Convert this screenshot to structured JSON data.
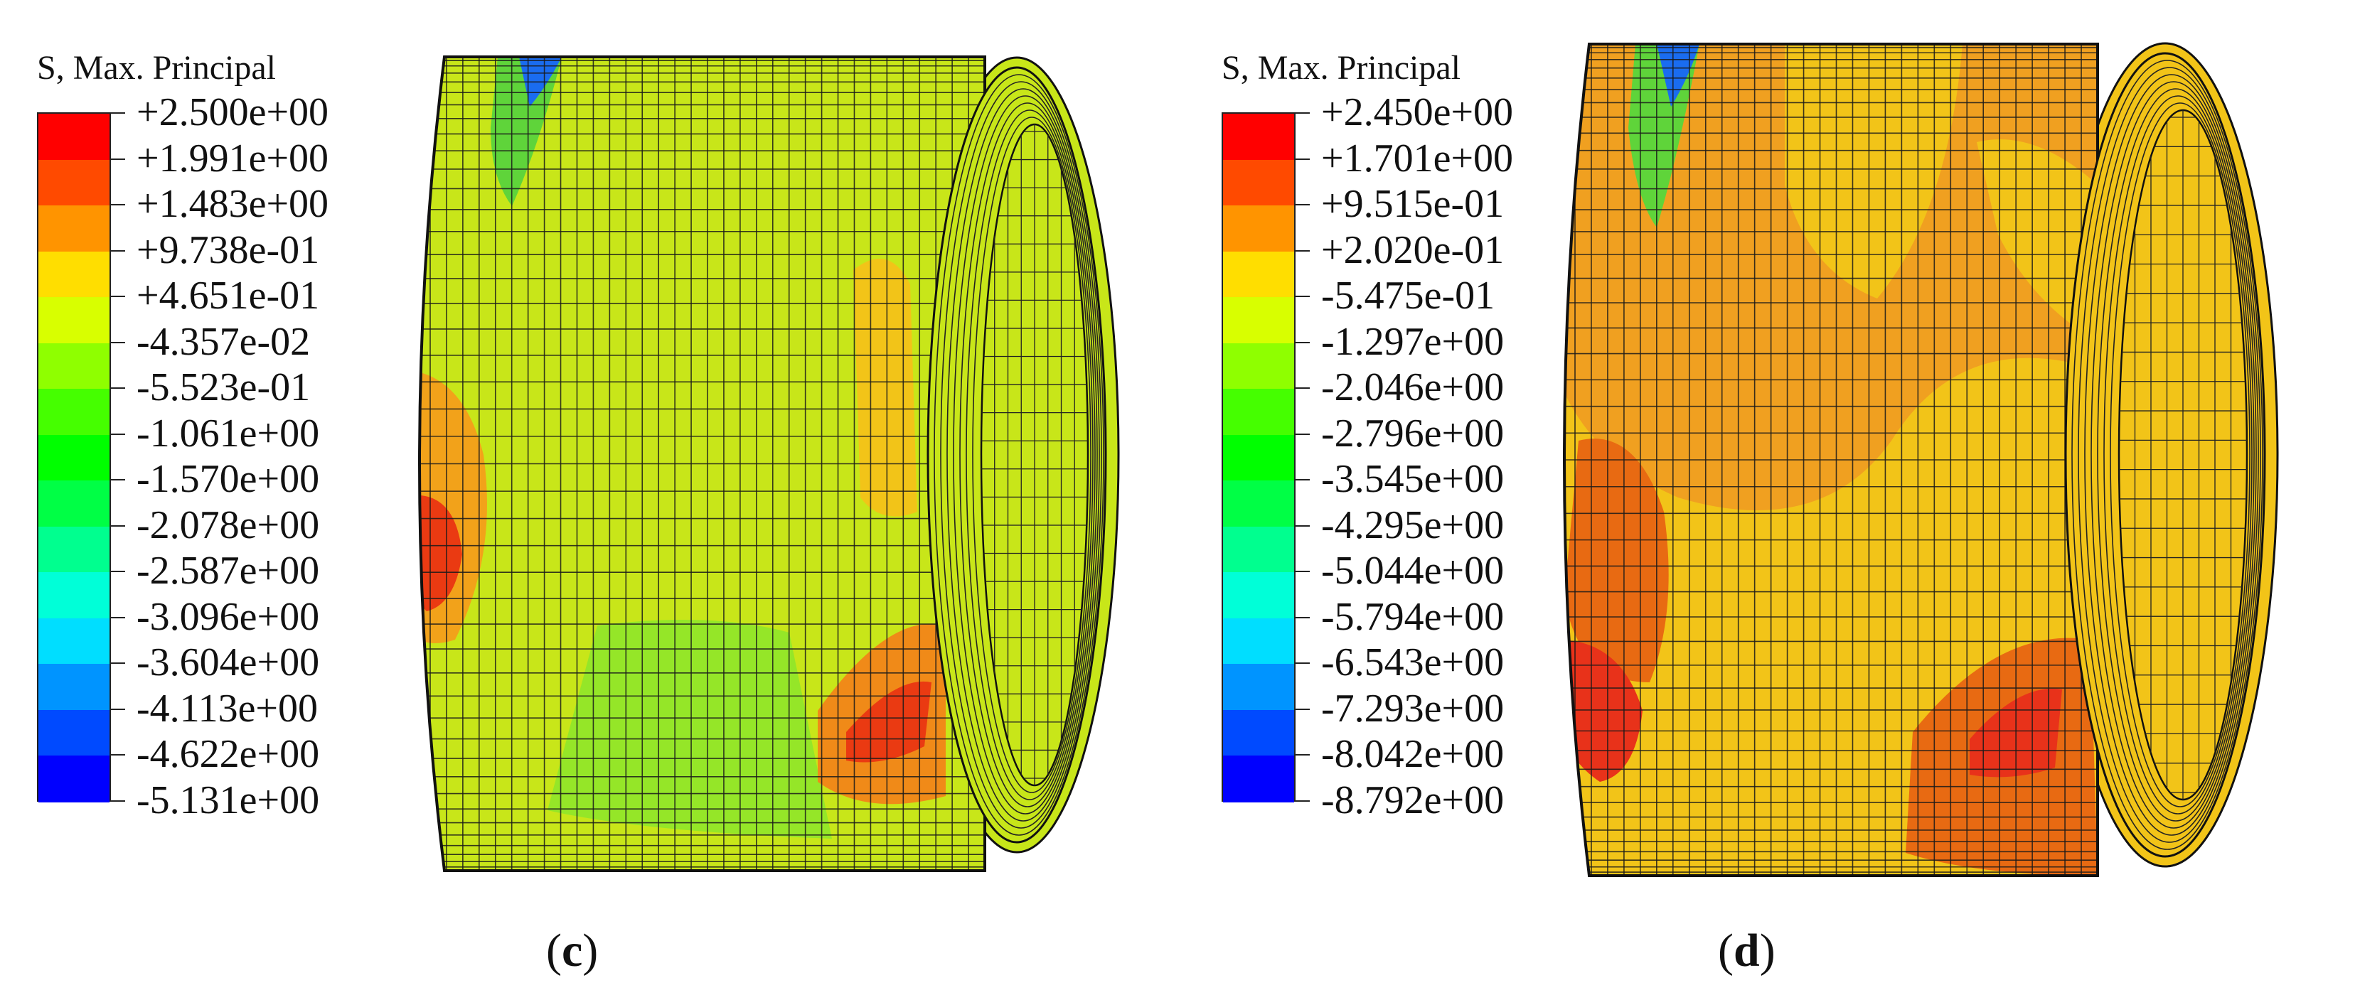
{
  "panels": [
    {
      "id": "c",
      "label_open": "(",
      "label_letter": "c",
      "label_close": ")",
      "legend": {
        "title": "S, Max. Principal",
        "labels": [
          "+2.500e+00",
          "+1.991e+00",
          "+1.483e+00",
          "+9.738e-01",
          "+4.651e-01",
          "-4.357e-02",
          "-5.523e-01",
          "-1.061e+00",
          "-1.570e+00",
          "-2.078e+00",
          "-2.587e+00",
          "-3.096e+00",
          "-3.604e+00",
          "-4.113e+00",
          "-4.622e+00",
          "-5.131e+00"
        ]
      },
      "base_color": "#c8e619"
    },
    {
      "id": "d",
      "label_open": "(",
      "label_letter": "d",
      "label_close": ")",
      "legend": {
        "title": "S, Max. Principal",
        "labels": [
          "+2.450e+00",
          "+1.701e+00",
          "+9.515e-01",
          "+2.020e-01",
          "-5.475e-01",
          "-1.297e+00",
          "-2.046e+00",
          "-2.796e+00",
          "-3.545e+00",
          "-4.295e+00",
          "-5.044e+00",
          "-5.794e+00",
          "-6.543e+00",
          "-7.293e+00",
          "-8.042e+00",
          "-8.792e+00"
        ]
      },
      "base_color": "#f2c418"
    }
  ],
  "legend_colors": [
    "#ff0000",
    "#ff4a00",
    "#ff9400",
    "#ffde00",
    "#d8ff00",
    "#8fff00",
    "#45ff00",
    "#00ff00",
    "#00ff45",
    "#00ff8f",
    "#00ffd8",
    "#00deff",
    "#0094ff",
    "#004aff",
    "#0000ff"
  ]
}
